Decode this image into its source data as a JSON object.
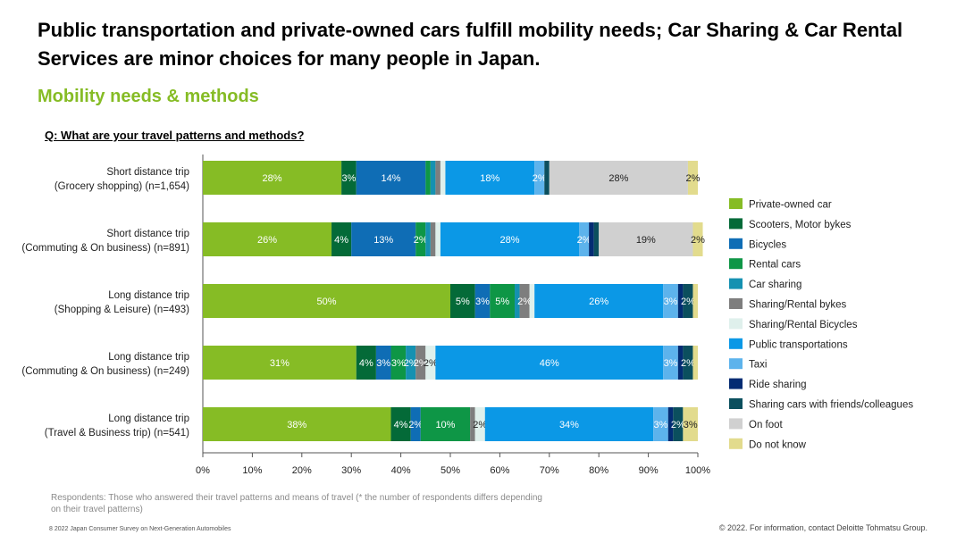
{
  "title": "Public transportation and private-owned cars fulfill mobility needs; Car Sharing & Car Rental Services are minor choices for many people in Japan.",
  "subtitle": "Mobility needs & methods",
  "question": "Q: What are your travel patterns and methods?",
  "note": "Respondents: Those who answered their travel patterns and means of travel (* the number of respondents differs depending on their travel patterns)",
  "footer_left": "8   2022 Japan Consumer Survey on Next-Generation Automobiles",
  "footer_right": "© 2022. For information, contact Deloitte Tohmatsu Group.",
  "chart_data": {
    "type": "bar",
    "orientation": "horizontal",
    "stacked": true,
    "xlim": [
      0,
      100
    ],
    "xticks": [
      "0%",
      "10%",
      "20%",
      "30%",
      "40%",
      "50%",
      "60%",
      "70%",
      "80%",
      "90%",
      "100%"
    ],
    "legend_position": "right",
    "categories": [
      [
        "Short distance trip",
        "(Grocery shopping) (n=1,654)"
      ],
      [
        "Short distance trip",
        "(Commuting & On business) (n=891)"
      ],
      [
        "Long distance trip",
        "(Shopping & Leisure)  (n=493)"
      ],
      [
        "Long distance trip",
        "(Commuting & On business) (n=249)"
      ],
      [
        "Long distance trip",
        "(Travel & Business trip)  (n=541)"
      ]
    ],
    "series": [
      {
        "name": "Private-owned car",
        "color": "#86bc25",
        "values": [
          28,
          26,
          50,
          31,
          38
        ]
      },
      {
        "name": "Scooters, Motor bykes",
        "color": "#046a38",
        "values": [
          3,
          4,
          5,
          4,
          4
        ]
      },
      {
        "name": "Bicycles",
        "color": "#0f6db5",
        "values": [
          14,
          13,
          3,
          3,
          2
        ]
      },
      {
        "name": "Rental cars",
        "color": "#0e9646",
        "values": [
          1,
          2,
          5,
          3,
          10
        ]
      },
      {
        "name": "Car sharing",
        "color": "#1591b1",
        "values": [
          1,
          1,
          1,
          2,
          0
        ]
      },
      {
        "name": "Sharing/Rental bykes",
        "color": "#7e7e7e",
        "values": [
          1,
          1,
          2,
          2,
          1
        ]
      },
      {
        "name": "Sharing/Rental Bicycles",
        "color": "#dff0ec",
        "values": [
          1,
          1,
          1,
          2,
          2
        ]
      },
      {
        "name": "Public transportations",
        "color": "#0b98e6",
        "values": [
          18,
          28,
          26,
          46,
          34
        ]
      },
      {
        "name": "Taxi",
        "color": "#5db3ec",
        "values": [
          2,
          2,
          3,
          3,
          3
        ]
      },
      {
        "name": "Ride sharing",
        "color": "#032c73",
        "values": [
          0,
          1,
          1,
          1,
          1
        ]
      },
      {
        "name": "Sharing cars with friends/colleagues",
        "color": "#0b4f5e",
        "values": [
          1,
          1,
          2,
          2,
          2
        ]
      },
      {
        "name": "On foot",
        "color": "#d0d0d0",
        "values": [
          28,
          19,
          0,
          0,
          0
        ]
      },
      {
        "name": "Do not know",
        "color": "#e2db8d",
        "values": [
          2,
          2,
          1,
          1,
          3
        ]
      }
    ]
  }
}
